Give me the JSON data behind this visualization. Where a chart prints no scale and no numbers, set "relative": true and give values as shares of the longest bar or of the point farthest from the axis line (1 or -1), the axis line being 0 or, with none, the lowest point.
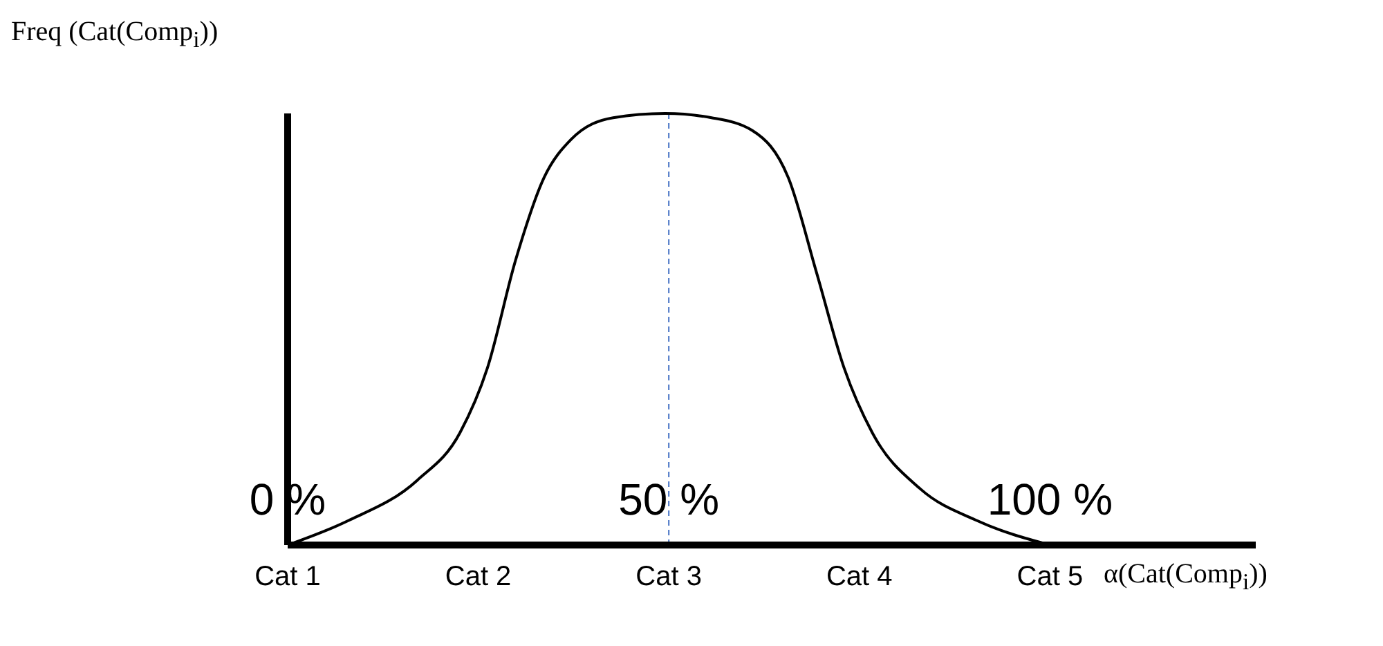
{
  "chart_data": {
    "type": "line",
    "relative": true,
    "ylabel": "Freq (Cat(Comp$_{i}$))",
    "xlabel": "α(Cat(Comp$_{i}$))",
    "xlim": [
      0,
      127
    ],
    "xticks": [
      {
        "value": 0,
        "label": "0 %"
      },
      {
        "value": 50,
        "label": "50 %"
      },
      {
        "value": 100,
        "label": "100 %"
      }
    ],
    "x": [
      0,
      7.9,
      17,
      22.6,
      26.2,
      29.9,
      33.6,
      37.2,
      42.7,
      49.5,
      55.6,
      61,
      65.7,
      69.4,
      73,
      76.7,
      83,
      90.5,
      100
    ],
    "annotations": [
      "Cat 1",
      "Cat 2",
      "Cat 3",
      "Cat 4",
      "Cat 5"
    ],
    "series": [
      {
        "color": "#000000",
        "values": [
          0,
          0.056,
          0.15,
          0.26,
          0.41,
          0.66,
          0.85,
          0.94,
          0.99,
          1,
          0.99,
          0.96,
          0.85,
          0.63,
          0.41,
          0.26,
          0.13,
          0.056,
          0
        ]
      }
    ],
    "ref_lines": [
      {
        "axis": "x",
        "value": 50,
        "color": "#4472c4",
        "line_style": "dashed"
      }
    ],
    "grid": false,
    "legend": false,
    "marker": "none",
    "line_style": "solid"
  }
}
